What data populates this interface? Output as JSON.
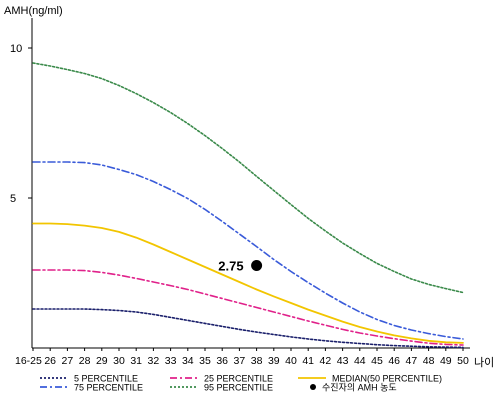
{
  "chart_data": {
    "type": "line",
    "ylabel": "AMH(ng/ml)",
    "xlabel": "나이",
    "x_tick_labels": [
      "16-25",
      "26",
      "27",
      "28",
      "29",
      "30",
      "31",
      "32",
      "33",
      "34",
      "35",
      "36",
      "37",
      "38",
      "39",
      "40",
      "41",
      "42",
      "43",
      "44",
      "45",
      "46",
      "47",
      "48",
      "49",
      "50"
    ],
    "y_ticks": [
      5,
      10
    ],
    "ylim": [
      0,
      11
    ],
    "grid": false,
    "legend_position": "bottom",
    "series": [
      {
        "name": "5 PERCENTILE",
        "color": "#1a1f6b",
        "style": "dotted",
        "values": [
          1.3,
          1.3,
          1.3,
          1.3,
          1.28,
          1.25,
          1.2,
          1.12,
          1.02,
          0.92,
          0.82,
          0.72,
          0.62,
          0.53,
          0.45,
          0.37,
          0.3,
          0.24,
          0.19,
          0.15,
          0.11,
          0.08,
          0.06,
          0.04,
          0.03,
          0.02
        ]
      },
      {
        "name": "25 PERCENTILE",
        "color": "#e0218a",
        "style": "dashdot",
        "values": [
          2.6,
          2.6,
          2.6,
          2.58,
          2.52,
          2.43,
          2.32,
          2.2,
          2.08,
          1.95,
          1.8,
          1.65,
          1.5,
          1.35,
          1.2,
          1.05,
          0.9,
          0.76,
          0.62,
          0.5,
          0.4,
          0.31,
          0.23,
          0.16,
          0.12,
          0.1
        ]
      },
      {
        "name": "MEDIAN(50 PERCENTILE)",
        "color": "#f2c500",
        "style": "solid",
        "values": [
          4.15,
          4.15,
          4.13,
          4.08,
          4.0,
          3.87,
          3.68,
          3.45,
          3.2,
          2.95,
          2.7,
          2.45,
          2.2,
          1.95,
          1.72,
          1.5,
          1.28,
          1.08,
          0.88,
          0.7,
          0.55,
          0.42,
          0.32,
          0.24,
          0.19,
          0.17
        ]
      },
      {
        "name": "75 PERCENTILE",
        "color": "#3a5bd9",
        "style": "dashdot",
        "values": [
          6.2,
          6.2,
          6.2,
          6.18,
          6.1,
          5.95,
          5.78,
          5.55,
          5.28,
          4.98,
          4.62,
          4.22,
          3.8,
          3.38,
          2.95,
          2.55,
          2.18,
          1.83,
          1.5,
          1.2,
          0.95,
          0.75,
          0.6,
          0.48,
          0.38,
          0.3
        ]
      },
      {
        "name": "95 PERCENTILE",
        "color": "#3a8a4a",
        "style": "dotted",
        "values": [
          9.5,
          9.4,
          9.28,
          9.15,
          8.98,
          8.75,
          8.48,
          8.18,
          7.85,
          7.48,
          7.08,
          6.65,
          6.2,
          5.72,
          5.25,
          4.78,
          4.32,
          3.9,
          3.5,
          3.15,
          2.82,
          2.55,
          2.3,
          2.12,
          1.98,
          1.85
        ]
      }
    ],
    "point": {
      "label": "2.75",
      "x_label": "38",
      "value": 2.75,
      "legend_text": "수진자의 AMH 농도"
    }
  }
}
